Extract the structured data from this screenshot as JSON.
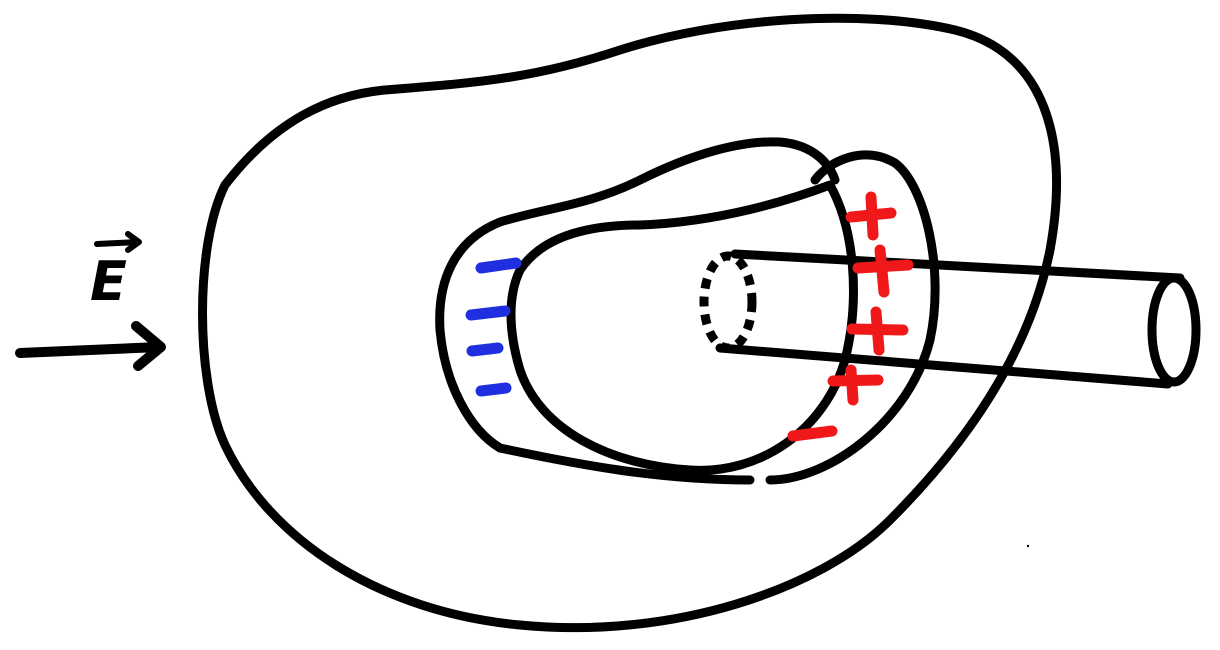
{
  "field": {
    "label": "E"
  },
  "charges": {
    "negative_color": "#1f2fe0",
    "positive_color": "#f01818",
    "left_side": [
      "-",
      "-",
      "-",
      "-"
    ],
    "right_side": [
      "+",
      "+",
      "+",
      "+",
      "+",
      "-"
    ]
  },
  "icons": {
    "field_arrow": "right-arrow-icon",
    "vector_arrow": "vector-arrow-icon"
  },
  "colors": {
    "ink": "#000000",
    "background": "#ffffff"
  }
}
